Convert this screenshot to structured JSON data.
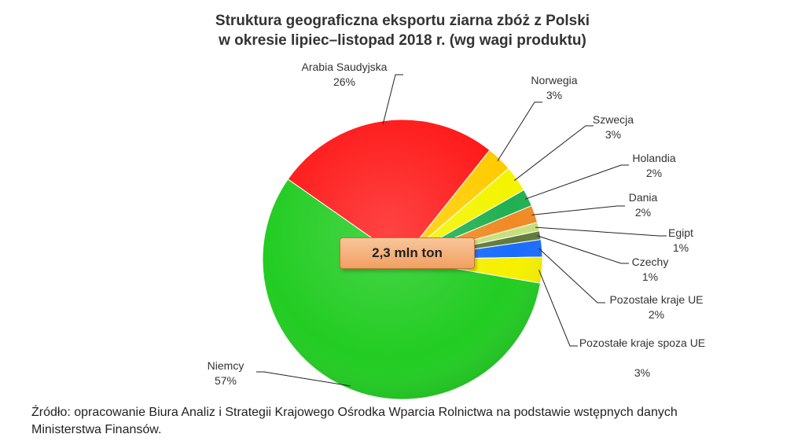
{
  "title_line1": "Struktura geograficzna eksportu ziarna zbóż z Polski",
  "title_line2": "w okresie lipiec–listopad 2018 r. (wg wagi produktu)",
  "center_label": "2,3 mln ton",
  "source_line1": "Źródło: opracowanie Biura Analiz i  Strategii Krajowego Ośrodka Wparcia Rolnictwa na podstawie  wstępnych danych",
  "source_line2": "Ministerstwa Finansów.",
  "chart_data": {
    "type": "pie",
    "title": "Struktura geograficzna eksportu ziarna zbóż z Polski w okresie lipiec–listopad 2018 r. (wg wagi produktu)",
    "slices": [
      {
        "name": "Niemcy",
        "value": 57,
        "label": "57%",
        "color": "#22cc22"
      },
      {
        "name": "Arabia Saudyjska",
        "value": 26,
        "label": "26%",
        "color": "#ff1a1a"
      },
      {
        "name": "Norwegia",
        "value": 3,
        "label": "3%",
        "color": "#ffcc00"
      },
      {
        "name": "Szwecja",
        "value": 3,
        "label": "3%",
        "color": "#f4f400"
      },
      {
        "name": "Holandia",
        "value": 2,
        "label": "2%",
        "color": "#21b050"
      },
      {
        "name": "Dania",
        "value": 2,
        "label": "2%",
        "color": "#f08a24"
      },
      {
        "name": "Egipt",
        "value": 1,
        "label": "1%",
        "color": "#c6e07a"
      },
      {
        "name": "Czechy",
        "value": 1,
        "label": "1%",
        "color": "#5f7a3a"
      },
      {
        "name": "Pozostałe  kraje UE",
        "value": 2,
        "label": "2%",
        "color": "#1a6cff"
      },
      {
        "name": "Pozostałe  kraje spoza UE",
        "value": 3,
        "label": "3%",
        "color": "#f6f000"
      }
    ]
  }
}
